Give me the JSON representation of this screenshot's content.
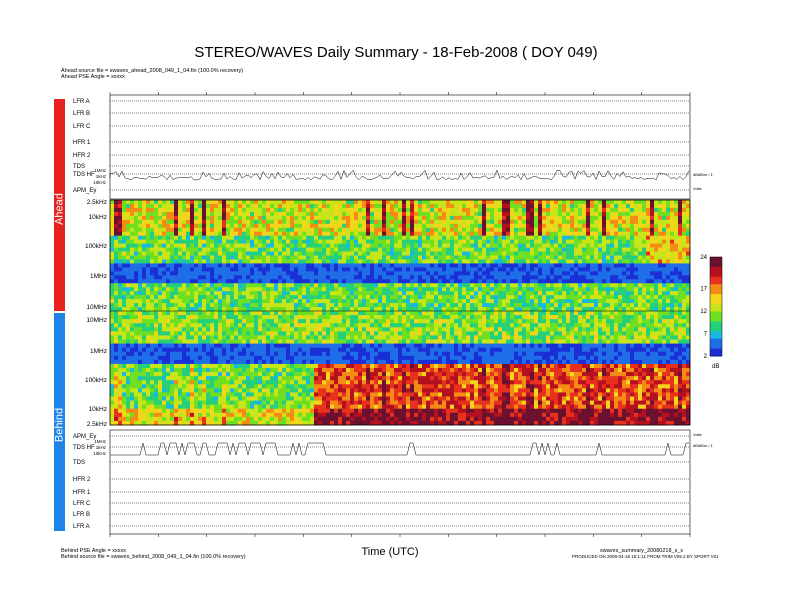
{
  "title": "STEREO/WAVES Daily Summary - 18-Feb-2008 ( DOY 049)",
  "ahead": {
    "source_line": "Ahead source file = swaves_ahead_2008_049_1_04.fin (100.0% recovery)",
    "angle_line": "Ahead PSE Angle = xxxxx",
    "band_label": "Ahead",
    "band_color": "#e8231f"
  },
  "behind": {
    "angle_line": "Behind PSE Angle = xxxxx",
    "source_line": "Behind source file = swaves_behind_2008_049_1_04.fin (100.0% recovery)",
    "band_label": "Behind",
    "band_color": "#1e84e6"
  },
  "footer": {
    "filename": "swaves_summary_20080218_s_x",
    "produced": "PRODUCED ON 2008-04-18 15:1:11 FROM TRIM V05.2 BY SPORT V01"
  },
  "chart_data": {
    "type": "heatmap",
    "xlabel": "Time (UTC)",
    "ylabel": "",
    "colorbar": {
      "ticks": [
        "24",
        "17",
        "12",
        "7",
        "2"
      ],
      "unit": "dB",
      "range": [
        2,
        24
      ]
    },
    "ahead_freq_ticks": [
      "2.5kHz",
      "10kHz",
      "100kHz",
      "1MHz",
      "10MHz"
    ],
    "behind_freq_ticks": [
      "10MHz",
      "1MHz",
      "100kHz",
      "10kHz",
      "2.5kHz"
    ],
    "ahead_rows": [
      "LFR A",
      "LFR B",
      "LFR C",
      "HFR 1",
      "HFR 2",
      "TDS",
      "TDS HF",
      "APM_Ey"
    ],
    "behind_rows": [
      "APM_Ey",
      "TDS HF",
      "TDS",
      "HFR 2",
      "HFR 1",
      "LFR C",
      "LFR B",
      "LFR A"
    ],
    "tds_scale": [
      "1MHz",
      "1kHz",
      "10kHz"
    ],
    "tds_ahead_side": "dBdB/m / 1",
    "tds_behind_side": "dBdB/m / 1",
    "volts_label": "Volts"
  }
}
